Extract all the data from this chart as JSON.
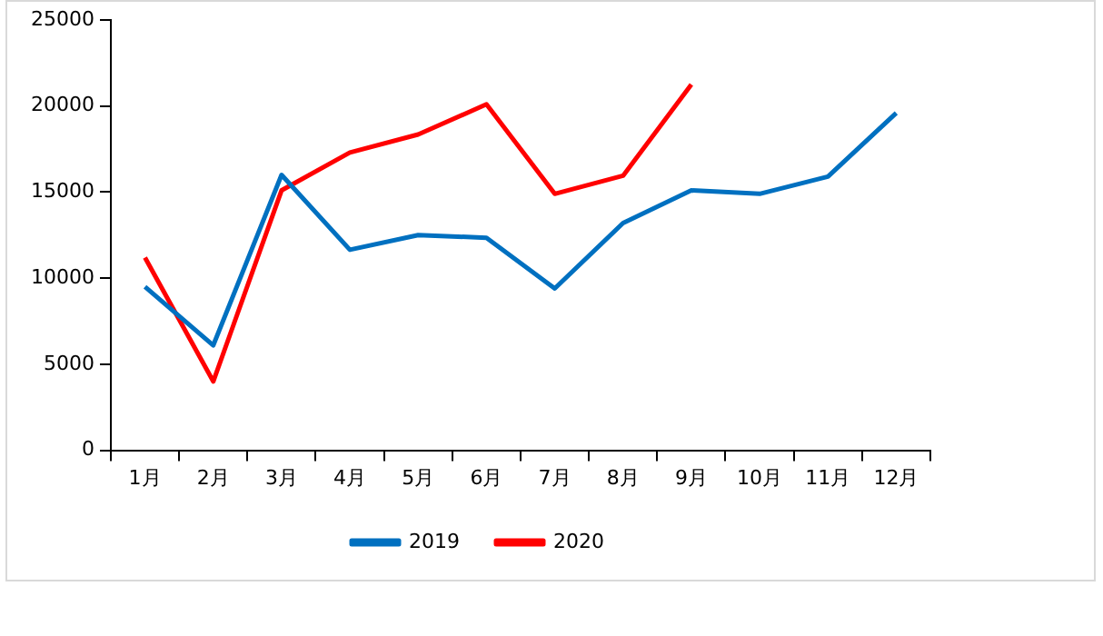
{
  "chart_data": {
    "type": "line",
    "categories": [
      "1月",
      "2月",
      "3月",
      "4月",
      "5月",
      "6月",
      "7月",
      "8月",
      "9月",
      "10月",
      "11月",
      "12月"
    ],
    "series": [
      {
        "name": "2019",
        "color": "#0070c0",
        "values": [
          9500,
          6100,
          16000,
          11650,
          12500,
          12350,
          9400,
          13200,
          15100,
          14900,
          15900,
          19600
        ]
      },
      {
        "name": "2020",
        "color": "#ff0000",
        "values": [
          11200,
          4000,
          15100,
          17300,
          18350,
          20100,
          14900,
          15950,
          21250,
          null,
          null,
          null
        ]
      }
    ],
    "ylim": [
      0,
      25000
    ],
    "yticks": [
      0,
      5000,
      10000,
      15000,
      20000,
      25000
    ],
    "grid": false,
    "legend": "bottom",
    "marker": "none",
    "line_style": "solid"
  }
}
